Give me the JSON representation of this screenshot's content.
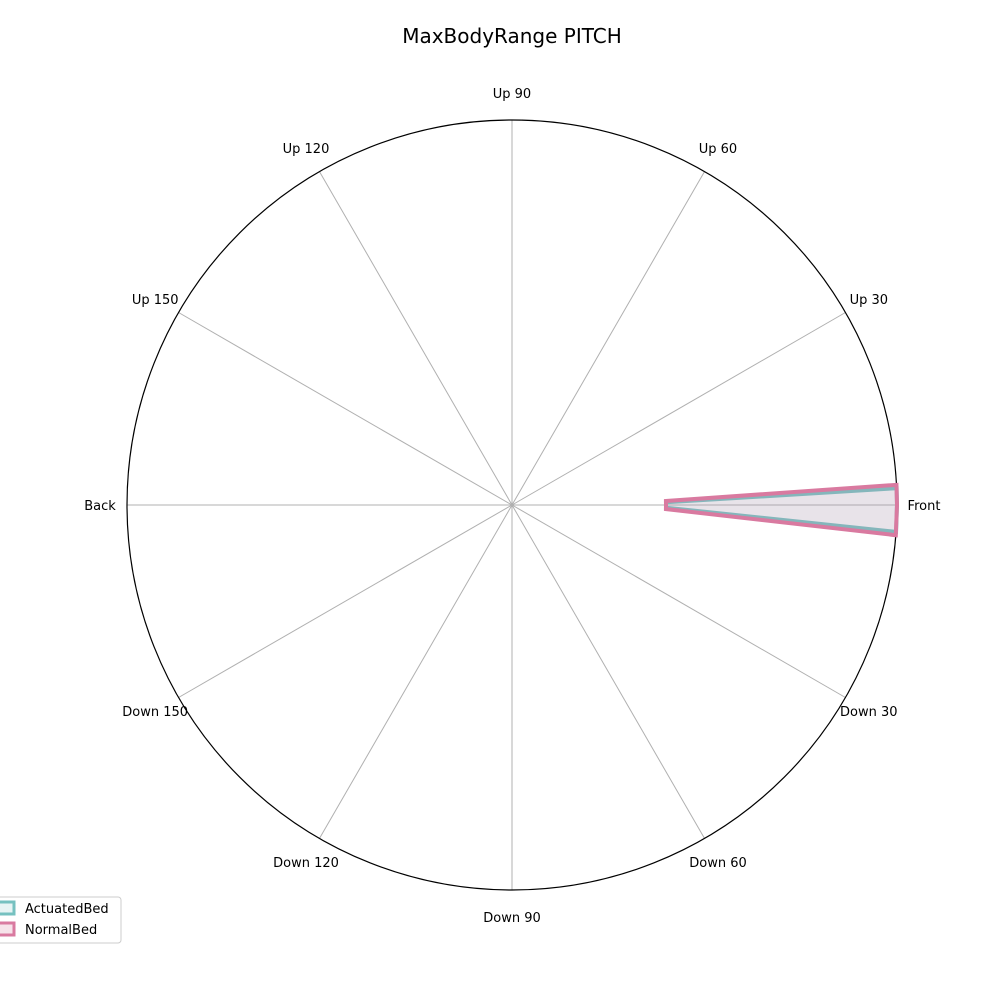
{
  "chart_data": {
    "type": "radar",
    "title": "MaxBodyRange PITCH",
    "categories": [
      "Front",
      "Up 30",
      "Up 60",
      "Up 90",
      "Up 120",
      "Up 150",
      "Back",
      "Down 150",
      "Down 120",
      "Down 90",
      "Down 60",
      "Down 30"
    ],
    "rlim": [
      0,
      1
    ],
    "grid": true,
    "legend_position": "lower-left",
    "series": [
      {
        "name": "ActuatedBed",
        "color": "#76c1c0",
        "points": [
          {
            "angle_deg": 0,
            "r": 0.4
          },
          {
            "angle_deg": 1,
            "r": 0.4
          },
          {
            "angle_deg": 2.5,
            "r": 1.0
          },
          {
            "angle_deg": 0,
            "r": 1.0
          },
          {
            "angle_deg": -4,
            "r": 1.0
          },
          {
            "angle_deg": -1,
            "r": 0.4
          }
        ]
      },
      {
        "name": "NormalBed",
        "color": "#d97aa0",
        "points": [
          {
            "angle_deg": 0,
            "r": 0.4
          },
          {
            "angle_deg": 1.5,
            "r": 0.4
          },
          {
            "angle_deg": 3,
            "r": 1.0
          },
          {
            "angle_deg": 0,
            "r": 1.0
          },
          {
            "angle_deg": -4.5,
            "r": 1.0
          },
          {
            "angle_deg": -1.5,
            "r": 0.4
          }
        ]
      }
    ]
  }
}
